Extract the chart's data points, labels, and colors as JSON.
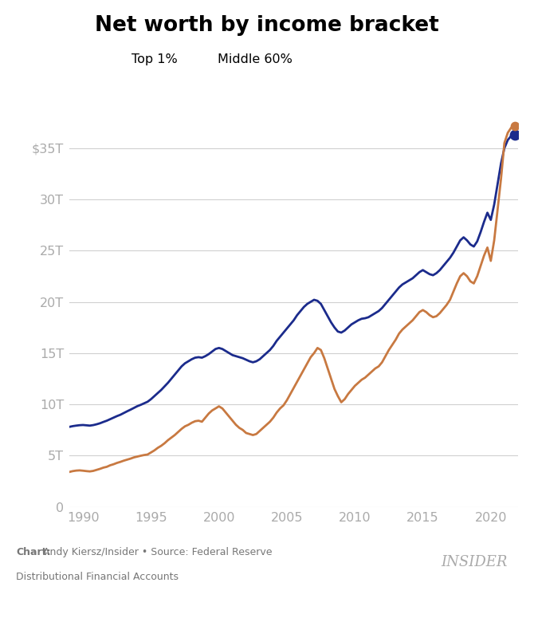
{
  "title": "Net worth by income bracket",
  "top1_color": "#C87941",
  "mid60_color": "#1B2B8C",
  "background_color": "#ffffff",
  "grid_color": "#d0d0d0",
  "tick_color": "#aaaaaa",
  "ylim": [
    0,
    38000
  ],
  "xlim": [
    1989.0,
    2022.0
  ],
  "yticks": [
    0,
    5000,
    10000,
    15000,
    20000,
    25000,
    30000,
    35000
  ],
  "ytick_labels": [
    "0",
    "5T",
    "10T",
    "15T",
    "20T",
    "25T",
    "30T",
    "$35T"
  ],
  "xticks": [
    1990,
    1995,
    2000,
    2005,
    2010,
    2015,
    2020
  ],
  "chart_credit_bold": "Chart:",
  "chart_credit_normal": " Andy Kiersz/Insider • Source: Federal Reserve\nDistributional Financial Accounts",
  "insider_label": "INSIDER",
  "top1_quarterly_years": [
    1989.0,
    1989.25,
    1989.5,
    1989.75,
    1990.0,
    1990.25,
    1990.5,
    1990.75,
    1991.0,
    1991.25,
    1991.5,
    1991.75,
    1992.0,
    1992.25,
    1992.5,
    1992.75,
    1993.0,
    1993.25,
    1993.5,
    1993.75,
    1994.0,
    1994.25,
    1994.5,
    1994.75,
    1995.0,
    1995.25,
    1995.5,
    1995.75,
    1996.0,
    1996.25,
    1996.5,
    1996.75,
    1997.0,
    1997.25,
    1997.5,
    1997.75,
    1998.0,
    1998.25,
    1998.5,
    1998.75,
    1999.0,
    1999.25,
    1999.5,
    1999.75,
    2000.0,
    2000.25,
    2000.5,
    2000.75,
    2001.0,
    2001.25,
    2001.5,
    2001.75,
    2002.0,
    2002.25,
    2002.5,
    2002.75,
    2003.0,
    2003.25,
    2003.5,
    2003.75,
    2004.0,
    2004.25,
    2004.5,
    2004.75,
    2005.0,
    2005.25,
    2005.5,
    2005.75,
    2006.0,
    2006.25,
    2006.5,
    2006.75,
    2007.0,
    2007.25,
    2007.5,
    2007.75,
    2008.0,
    2008.25,
    2008.5,
    2008.75,
    2009.0,
    2009.25,
    2009.5,
    2009.75,
    2010.0,
    2010.25,
    2010.5,
    2010.75,
    2011.0,
    2011.25,
    2011.5,
    2011.75,
    2012.0,
    2012.25,
    2012.5,
    2012.75,
    2013.0,
    2013.25,
    2013.5,
    2013.75,
    2014.0,
    2014.25,
    2014.5,
    2014.75,
    2015.0,
    2015.25,
    2015.5,
    2015.75,
    2016.0,
    2016.25,
    2016.5,
    2016.75,
    2017.0,
    2017.25,
    2017.5,
    2017.75,
    2018.0,
    2018.25,
    2018.5,
    2018.75,
    2019.0,
    2019.25,
    2019.5,
    2019.75,
    2020.0,
    2020.25,
    2020.5,
    2020.75,
    2021.0,
    2021.25,
    2021.5,
    2021.75
  ],
  "top1_values": [
    3400,
    3480,
    3530,
    3550,
    3520,
    3480,
    3450,
    3500,
    3600,
    3700,
    3820,
    3900,
    4050,
    4150,
    4280,
    4380,
    4500,
    4600,
    4700,
    4820,
    4900,
    4980,
    5050,
    5100,
    5300,
    5500,
    5750,
    5950,
    6200,
    6500,
    6750,
    7000,
    7300,
    7600,
    7850,
    8000,
    8200,
    8350,
    8400,
    8300,
    8700,
    9100,
    9400,
    9600,
    9800,
    9600,
    9200,
    8800,
    8400,
    8000,
    7700,
    7500,
    7200,
    7100,
    7000,
    7100,
    7400,
    7700,
    8000,
    8300,
    8700,
    9200,
    9600,
    9900,
    10400,
    11000,
    11600,
    12200,
    12800,
    13400,
    14000,
    14600,
    15000,
    15500,
    15300,
    14500,
    13500,
    12500,
    11500,
    10800,
    10200,
    10500,
    11000,
    11400,
    11800,
    12100,
    12400,
    12600,
    12900,
    13200,
    13500,
    13700,
    14100,
    14700,
    15300,
    15800,
    16300,
    16900,
    17300,
    17600,
    17900,
    18200,
    18600,
    19000,
    19200,
    19000,
    18700,
    18500,
    18600,
    18900,
    19300,
    19700,
    20200,
    21000,
    21800,
    22500,
    22800,
    22500,
    22000,
    21800,
    22500,
    23500,
    24500,
    25300,
    24000,
    26000,
    29000,
    32000,
    35500,
    36500,
    37000,
    37200
  ],
  "mid60_values": [
    7800,
    7870,
    7920,
    7960,
    7980,
    7950,
    7920,
    7970,
    8050,
    8150,
    8280,
    8400,
    8550,
    8700,
    8850,
    8980,
    9150,
    9320,
    9480,
    9650,
    9820,
    9950,
    10100,
    10250,
    10500,
    10800,
    11100,
    11400,
    11750,
    12100,
    12500,
    12900,
    13300,
    13700,
    14000,
    14200,
    14400,
    14550,
    14600,
    14550,
    14700,
    14900,
    15150,
    15400,
    15500,
    15400,
    15200,
    15000,
    14800,
    14700,
    14600,
    14500,
    14350,
    14200,
    14100,
    14200,
    14400,
    14700,
    15000,
    15300,
    15700,
    16200,
    16600,
    17000,
    17400,
    17800,
    18200,
    18700,
    19100,
    19500,
    19800,
    20000,
    20200,
    20100,
    19800,
    19200,
    18600,
    18000,
    17500,
    17100,
    17000,
    17200,
    17500,
    17800,
    18000,
    18200,
    18350,
    18400,
    18500,
    18700,
    18900,
    19100,
    19400,
    19800,
    20200,
    20600,
    21000,
    21400,
    21700,
    21900,
    22100,
    22300,
    22600,
    22900,
    23100,
    22900,
    22700,
    22600,
    22800,
    23100,
    23500,
    23900,
    24300,
    24800,
    25400,
    26000,
    26300,
    26000,
    25600,
    25400,
    25900,
    26800,
    27800,
    28700,
    28000,
    29500,
    31500,
    33500,
    35000,
    35800,
    36200,
    36300
  ]
}
